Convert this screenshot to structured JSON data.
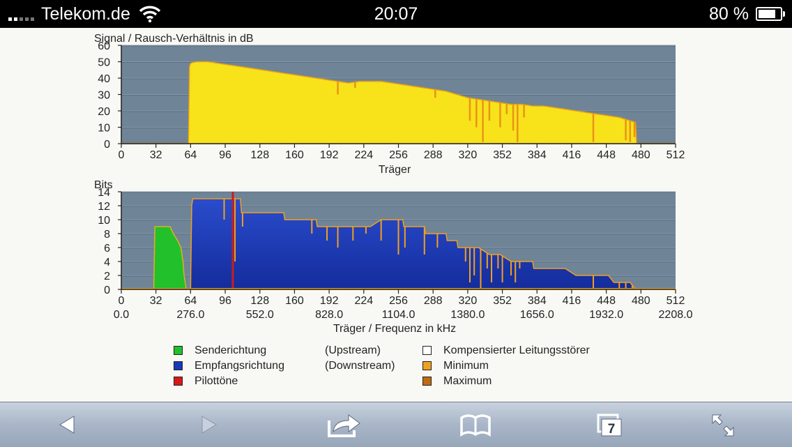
{
  "status_bar": {
    "carrier": "Telekom.de",
    "time": "20:07",
    "battery": "80 %",
    "battery_level": 0.8,
    "signal_bars": [
      1,
      1,
      0,
      0,
      0
    ],
    "icons": [
      "signal-bars-icon",
      "wifi-icon",
      "battery-icon"
    ]
  },
  "colors": {
    "plot_bg": "#6f8497",
    "snr_fill": "#f8e21a",
    "snr_line": "#e8a018",
    "upstream": "#22c02a",
    "downstream": "#1838b8",
    "pilot": "#d81818",
    "minmax_line": "#f0a020"
  },
  "chart_data": [
    {
      "type": "area",
      "title": "Signal / Rausch-Verhältnis in dB",
      "xlabel": "Träger",
      "ylabel": "",
      "xlim": [
        0,
        512
      ],
      "ylim": [
        0,
        60
      ],
      "xticks": [
        0,
        32,
        64,
        96,
        128,
        160,
        192,
        224,
        256,
        288,
        320,
        352,
        384,
        416,
        448,
        480,
        512
      ],
      "yticks": [
        0,
        10,
        20,
        30,
        40,
        50,
        60
      ],
      "grid": true,
      "series": [
        {
          "x": [
            0,
            62,
            63,
            64,
            66,
            70,
            75,
            80,
            90,
            100,
            110,
            120,
            130,
            140,
            150,
            160,
            170,
            180,
            190,
            200,
            210,
            220,
            230,
            240,
            250,
            260,
            270,
            280,
            290,
            300,
            310,
            320,
            330,
            340,
            350,
            360,
            370,
            380,
            390,
            400,
            410,
            420,
            430,
            440,
            450,
            460,
            465,
            470,
            475,
            476,
            512
          ],
          "y": [
            0,
            0,
            47,
            49,
            49.5,
            50,
            50,
            50,
            49,
            48,
            47,
            46,
            45,
            44,
            43,
            42,
            41,
            40,
            39,
            38,
            37,
            38,
            38,
            38,
            37,
            36,
            35,
            34,
            33,
            32,
            30,
            28,
            27,
            26,
            25,
            24,
            24,
            23,
            23,
            22,
            21,
            20,
            19,
            18,
            17,
            16,
            15,
            14,
            13,
            0,
            0
          ]
        }
      ],
      "dips": [
        {
          "x": 200,
          "y": 30
        },
        {
          "x": 216,
          "y": 34
        },
        {
          "x": 290,
          "y": 28
        },
        {
          "x": 322,
          "y": 14
        },
        {
          "x": 328,
          "y": 10
        },
        {
          "x": 334,
          "y": 1
        },
        {
          "x": 340,
          "y": 14
        },
        {
          "x": 350,
          "y": 10
        },
        {
          "x": 356,
          "y": 18
        },
        {
          "x": 362,
          "y": 8
        },
        {
          "x": 366,
          "y": 1
        },
        {
          "x": 372,
          "y": 16
        },
        {
          "x": 436,
          "y": 1
        },
        {
          "x": 466,
          "y": 2
        },
        {
          "x": 470,
          "y": 1
        },
        {
          "x": 474,
          "y": 4
        }
      ]
    },
    {
      "type": "area",
      "title": "Bits",
      "xlabel": "Träger / Frequenz in kHz",
      "ylabel": "",
      "xlim": [
        0,
        512
      ],
      "ylim": [
        0,
        14
      ],
      "xticks": [
        0,
        32,
        64,
        96,
        128,
        160,
        192,
        224,
        256,
        288,
        320,
        352,
        384,
        416,
        448,
        480,
        512
      ],
      "freq_labels": [
        "0.0",
        "276.0",
        "552.0",
        "828.0",
        "1104.0",
        "1380.0",
        "1656.0",
        "1932.0",
        "2208.0"
      ],
      "yticks": [
        0,
        2,
        4,
        6,
        8,
        10,
        12,
        14
      ],
      "grid": true,
      "series": [
        {
          "name": "Senderichtung",
          "x": [
            30,
            31,
            32,
            45,
            48,
            52,
            55,
            57,
            58,
            59,
            60
          ],
          "y": [
            0,
            9,
            9,
            9,
            8,
            7,
            6,
            4,
            2,
            1,
            0
          ]
        },
        {
          "name": "Empfangsrichtung",
          "x": [
            64,
            65,
            66,
            70,
            72,
            110,
            111,
            150,
            151,
            160,
            170,
            180,
            181,
            200,
            210,
            230,
            240,
            260,
            261,
            280,
            281,
            300,
            301,
            310,
            311,
            330,
            340,
            350,
            360,
            380,
            381,
            400,
            410,
            420,
            430,
            440,
            450,
            455,
            460,
            470,
            475,
            476
          ],
          "y": [
            0,
            12,
            13,
            13,
            13,
            13,
            11,
            11,
            10,
            10,
            10,
            10,
            9,
            9,
            9,
            9,
            10,
            10,
            9,
            9,
            8,
            8,
            7,
            7,
            6,
            6,
            5,
            5,
            4,
            4,
            3,
            3,
            3,
            2,
            2,
            2,
            2,
            1,
            1,
            1,
            0,
            0
          ]
        }
      ],
      "pilot_tone": 103,
      "dips": [
        {
          "x": 95,
          "y": 10
        },
        {
          "x": 105,
          "y": 4
        },
        {
          "x": 112,
          "y": 9
        },
        {
          "x": 176,
          "y": 8
        },
        {
          "x": 190,
          "y": 7
        },
        {
          "x": 200,
          "y": 6
        },
        {
          "x": 214,
          "y": 7
        },
        {
          "x": 226,
          "y": 8
        },
        {
          "x": 240,
          "y": 7
        },
        {
          "x": 256,
          "y": 5
        },
        {
          "x": 262,
          "y": 6
        },
        {
          "x": 280,
          "y": 5
        },
        {
          "x": 292,
          "y": 6
        },
        {
          "x": 318,
          "y": 4
        },
        {
          "x": 322,
          "y": 1
        },
        {
          "x": 326,
          "y": 2
        },
        {
          "x": 332,
          "y": 0
        },
        {
          "x": 338,
          "y": 3
        },
        {
          "x": 342,
          "y": 1
        },
        {
          "x": 348,
          "y": 3
        },
        {
          "x": 352,
          "y": 1
        },
        {
          "x": 360,
          "y": 2
        },
        {
          "x": 364,
          "y": 1
        },
        {
          "x": 368,
          "y": 3
        },
        {
          "x": 436,
          "y": 0
        },
        {
          "x": 460,
          "y": 0
        },
        {
          "x": 466,
          "y": 0
        },
        {
          "x": 472,
          "y": 0
        }
      ]
    }
  ],
  "legend": [
    {
      "label": "Senderichtung",
      "direction": "(Upstream)",
      "color": "#22c02a"
    },
    {
      "label": "Empfangsrichtung",
      "direction": "(Downstream)",
      "color": "#1838b8"
    },
    {
      "label": "Pilottöne",
      "direction": "",
      "color": "#d81818"
    },
    {
      "label": "Kompensierter Leitungsstörer",
      "direction": "",
      "color": "#ffffff"
    },
    {
      "label": "Minimum",
      "direction": "",
      "color": "#f0a020"
    },
    {
      "label": "Maximum",
      "direction": "",
      "color": "#c06a10"
    }
  ],
  "toolbar": {
    "tabs_count": "7",
    "buttons": [
      "back-arrow-icon",
      "forward-arrow-icon",
      "share-icon",
      "bookmarks-icon",
      "tabs-icon",
      "fullscreen-icon"
    ]
  }
}
